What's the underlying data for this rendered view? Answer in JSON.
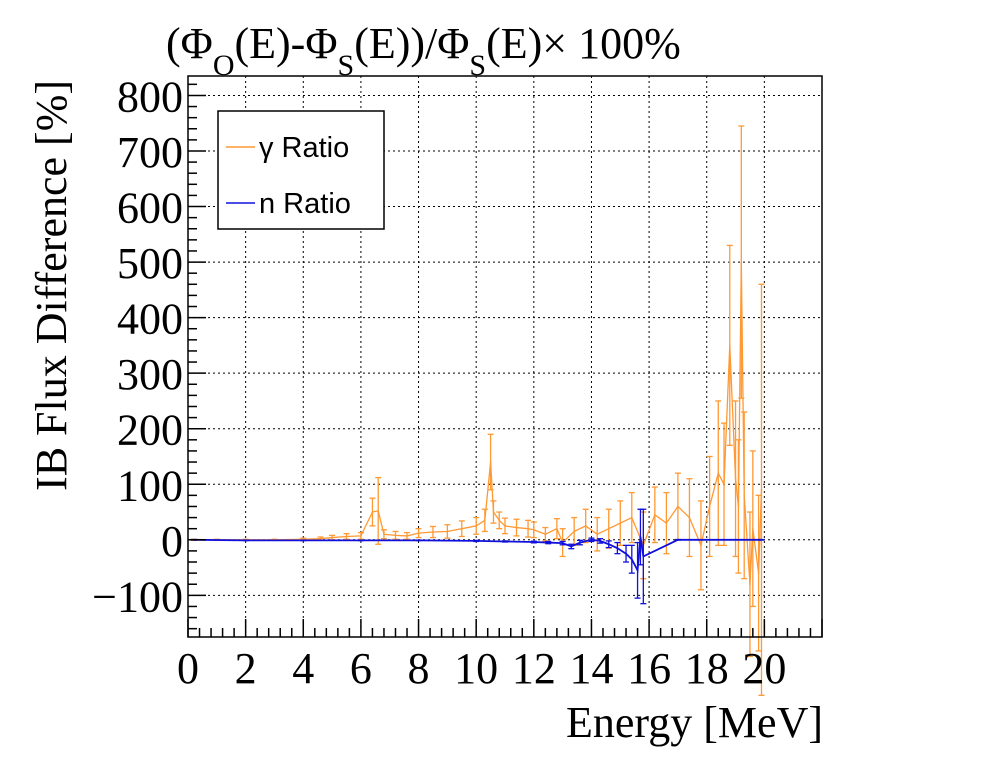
{
  "chart_data": {
    "type": "scatter",
    "title": {
      "prefix": "(Φ",
      "sub1": "O",
      "mid1": "(E)-Φ",
      "sub2": "S",
      "mid2": "(E))/Φ",
      "sub3": "S",
      "suffix": "(E)× 100%"
    },
    "xlabel": "Energy [MeV]",
    "ylabel": "IB Flux Difference [%]",
    "xlim": [
      0,
      22
    ],
    "ylim": [
      -175,
      835
    ],
    "xticks": [
      0,
      2,
      4,
      6,
      8,
      10,
      12,
      14,
      16,
      18,
      20
    ],
    "xtick_labels": [
      "0",
      "2",
      "4",
      "6",
      "8",
      "10",
      "12",
      "14",
      "16",
      "18",
      "20"
    ],
    "yticks": [
      -100,
      0,
      100,
      200,
      300,
      400,
      500,
      600,
      700,
      800
    ],
    "ytick_labels": [
      "−100",
      "0",
      "100",
      "200",
      "300",
      "400",
      "500",
      "600",
      "700",
      "800"
    ],
    "grid": true,
    "legend_position": "top-left",
    "series": [
      {
        "name": "γ Ratio",
        "color": "#ff9933",
        "x": [
          0.2,
          1.0,
          2.0,
          3.0,
          4.0,
          4.6,
          5.0,
          5.5,
          6.0,
          6.4,
          6.6,
          6.8,
          7.2,
          7.6,
          8.0,
          8.5,
          9.0,
          9.5,
          10.0,
          10.3,
          10.5,
          10.6,
          10.8,
          11.0,
          11.4,
          11.8,
          12.0,
          12.4,
          12.8,
          13.0,
          13.4,
          13.8,
          14.2,
          14.6,
          15.0,
          15.4,
          15.8,
          16.2,
          16.6,
          17.0,
          17.4,
          17.8,
          18.1,
          18.4,
          18.6,
          18.8,
          19.0,
          19.1,
          19.2,
          19.3,
          19.5,
          19.6,
          19.8,
          19.9
        ],
        "values": [
          0,
          0,
          0,
          0,
          1,
          2,
          4,
          6,
          7,
          50,
          52,
          10,
          8,
          7,
          12,
          14,
          15,
          20,
          25,
          35,
          140,
          50,
          35,
          25,
          22,
          20,
          18,
          10,
          20,
          -5,
          15,
          25,
          10,
          20,
          30,
          40,
          -10,
          45,
          30,
          60,
          40,
          -10,
          60,
          120,
          100,
          350,
          110,
          60,
          500,
          80,
          -80,
          20,
          -60,
          90
        ],
        "errors": [
          1,
          1,
          1,
          1,
          2,
          3,
          4,
          5,
          6,
          25,
          60,
          8,
          7,
          6,
          8,
          10,
          12,
          14,
          15,
          20,
          50,
          20,
          15,
          14,
          15,
          15,
          14,
          12,
          18,
          25,
          25,
          30,
          30,
          35,
          40,
          45,
          60,
          50,
          55,
          60,
          70,
          80,
          90,
          130,
          110,
          180,
          140,
          120,
          245,
          150,
          130,
          140,
          140,
          370
        ]
      },
      {
        "name": "n Ratio",
        "color": "#1010dd",
        "x": [
          0.2,
          2.0,
          4.0,
          6.0,
          8.0,
          10.0,
          11.0,
          12.0,
          12.5,
          13.0,
          13.3,
          13.6,
          14.0,
          14.3,
          14.6,
          14.9,
          15.2,
          15.4,
          15.6,
          15.7,
          15.8,
          17.0,
          19.9
        ],
        "values": [
          0,
          -1,
          -1,
          -1,
          -1,
          -2,
          -3,
          -4,
          -5,
          -6,
          -12,
          -5,
          0,
          -2,
          -8,
          -15,
          -25,
          -35,
          -55,
          5,
          -30,
          0,
          0
        ],
        "errors": [
          0.5,
          0.5,
          0.5,
          0.5,
          0.5,
          1,
          1,
          1.5,
          2,
          3,
          4,
          4,
          3,
          4,
          6,
          10,
          15,
          25,
          50,
          50,
          85,
          0.5,
          0.5
        ]
      }
    ]
  }
}
